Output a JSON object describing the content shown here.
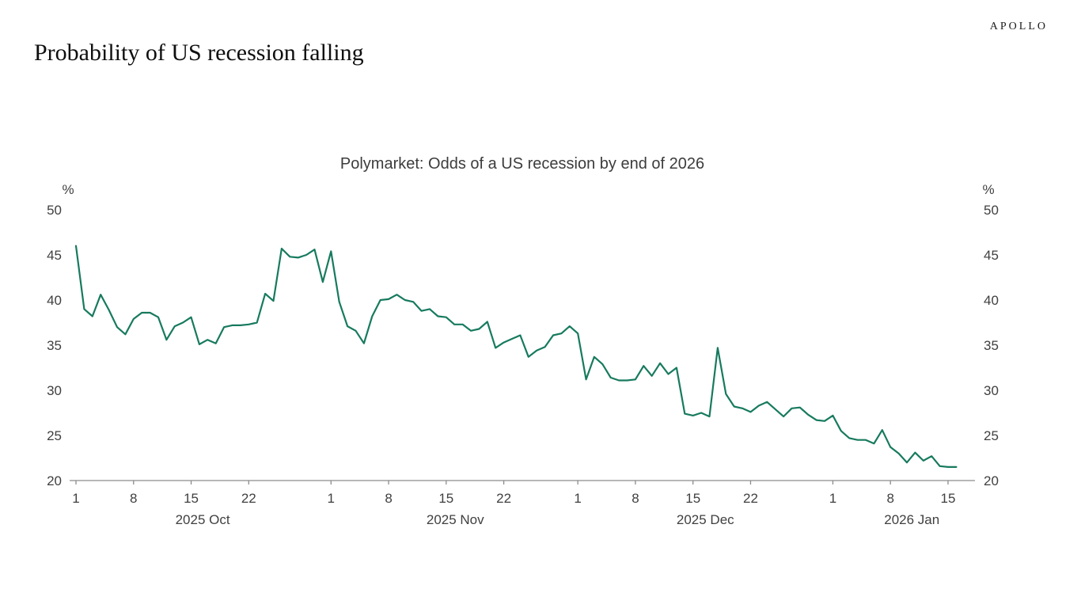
{
  "brand": {
    "logo_text": "APOLLO"
  },
  "header": {
    "title": "Probability of US recession falling"
  },
  "chart_data": {
    "type": "line",
    "title": "Polymarket: Odds of a US recession by end of 2026",
    "grid": false,
    "legend": false,
    "y_axis": {
      "unit": "%",
      "min": 20,
      "max": 50,
      "ticks": [
        50,
        45,
        40,
        35,
        30,
        25,
        20
      ],
      "sides": "both"
    },
    "x_axis": {
      "start_date": "2025-10-01",
      "end_date": "2026-01-16",
      "tick_marks": [
        {
          "label": "1",
          "day_index": 0
        },
        {
          "label": "8",
          "day_index": 7
        },
        {
          "label": "15",
          "day_index": 14
        },
        {
          "label": "22",
          "day_index": 21
        },
        {
          "label": "1",
          "day_index": 31
        },
        {
          "label": "8",
          "day_index": 38
        },
        {
          "label": "15",
          "day_index": 45
        },
        {
          "label": "22",
          "day_index": 52
        },
        {
          "label": "1",
          "day_index": 61
        },
        {
          "label": "8",
          "day_index": 68
        },
        {
          "label": "15",
          "day_index": 75
        },
        {
          "label": "22",
          "day_index": 82
        },
        {
          "label": "1",
          "day_index": 92
        },
        {
          "label": "8",
          "day_index": 99
        },
        {
          "label": "15",
          "day_index": 106
        }
      ],
      "month_labels": [
        "2025 Oct",
        "2025 Nov",
        "2025 Dec",
        "2026 Jan"
      ]
    },
    "series": [
      {
        "color": "#177a5e",
        "values": [
          46.0,
          39.0,
          38.2,
          40.6,
          38.9,
          37.0,
          36.2,
          37.9,
          38.6,
          38.6,
          38.1,
          35.6,
          37.1,
          37.5,
          38.1,
          35.1,
          35.6,
          35.2,
          37.0,
          37.2,
          37.2,
          37.3,
          37.5,
          40.7,
          39.9,
          45.7,
          44.8,
          44.7,
          45.0,
          45.6,
          42.0,
          45.4,
          39.8,
          37.1,
          36.6,
          35.2,
          38.2,
          40.0,
          40.1,
          40.6,
          40.0,
          39.8,
          38.8,
          39.0,
          38.2,
          38.1,
          37.3,
          37.3,
          36.6,
          36.8,
          37.6,
          34.7,
          35.3,
          35.7,
          36.1,
          33.7,
          34.4,
          34.8,
          36.1,
          36.3,
          37.1,
          36.3,
          31.2,
          33.7,
          32.9,
          31.4,
          31.1,
          31.1,
          31.2,
          32.7,
          31.6,
          33.0,
          31.8,
          32.5,
          27.4,
          27.2,
          27.5,
          27.1,
          34.7,
          29.6,
          28.2,
          28.0,
          27.6,
          28.3,
          28.7,
          27.9,
          27.1,
          28.0,
          28.1,
          27.3,
          26.7,
          26.6,
          27.2,
          25.5,
          24.7,
          24.5,
          24.5,
          24.1,
          25.6,
          23.7,
          23.0,
          22.0,
          23.1,
          22.2,
          22.7,
          21.6,
          21.5,
          21.5
        ]
      }
    ]
  }
}
